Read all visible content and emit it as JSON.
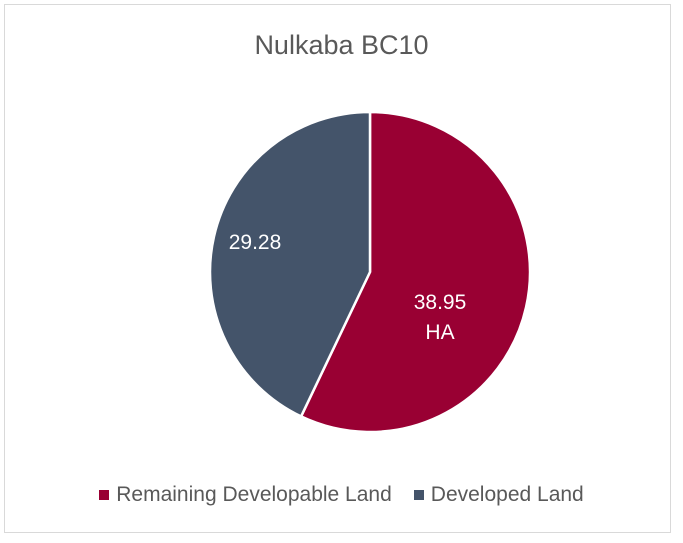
{
  "chart_data": {
    "type": "pie",
    "title": "Nulkaba BC10",
    "categories": [
      "Remaining Developable Land",
      "Developed Land"
    ],
    "values": [
      38.95,
      29.28
    ],
    "value_labels": [
      "38.95 HA",
      "29.28"
    ],
    "colors": [
      "#990033",
      "#44546a"
    ],
    "legend": "bottom"
  }
}
